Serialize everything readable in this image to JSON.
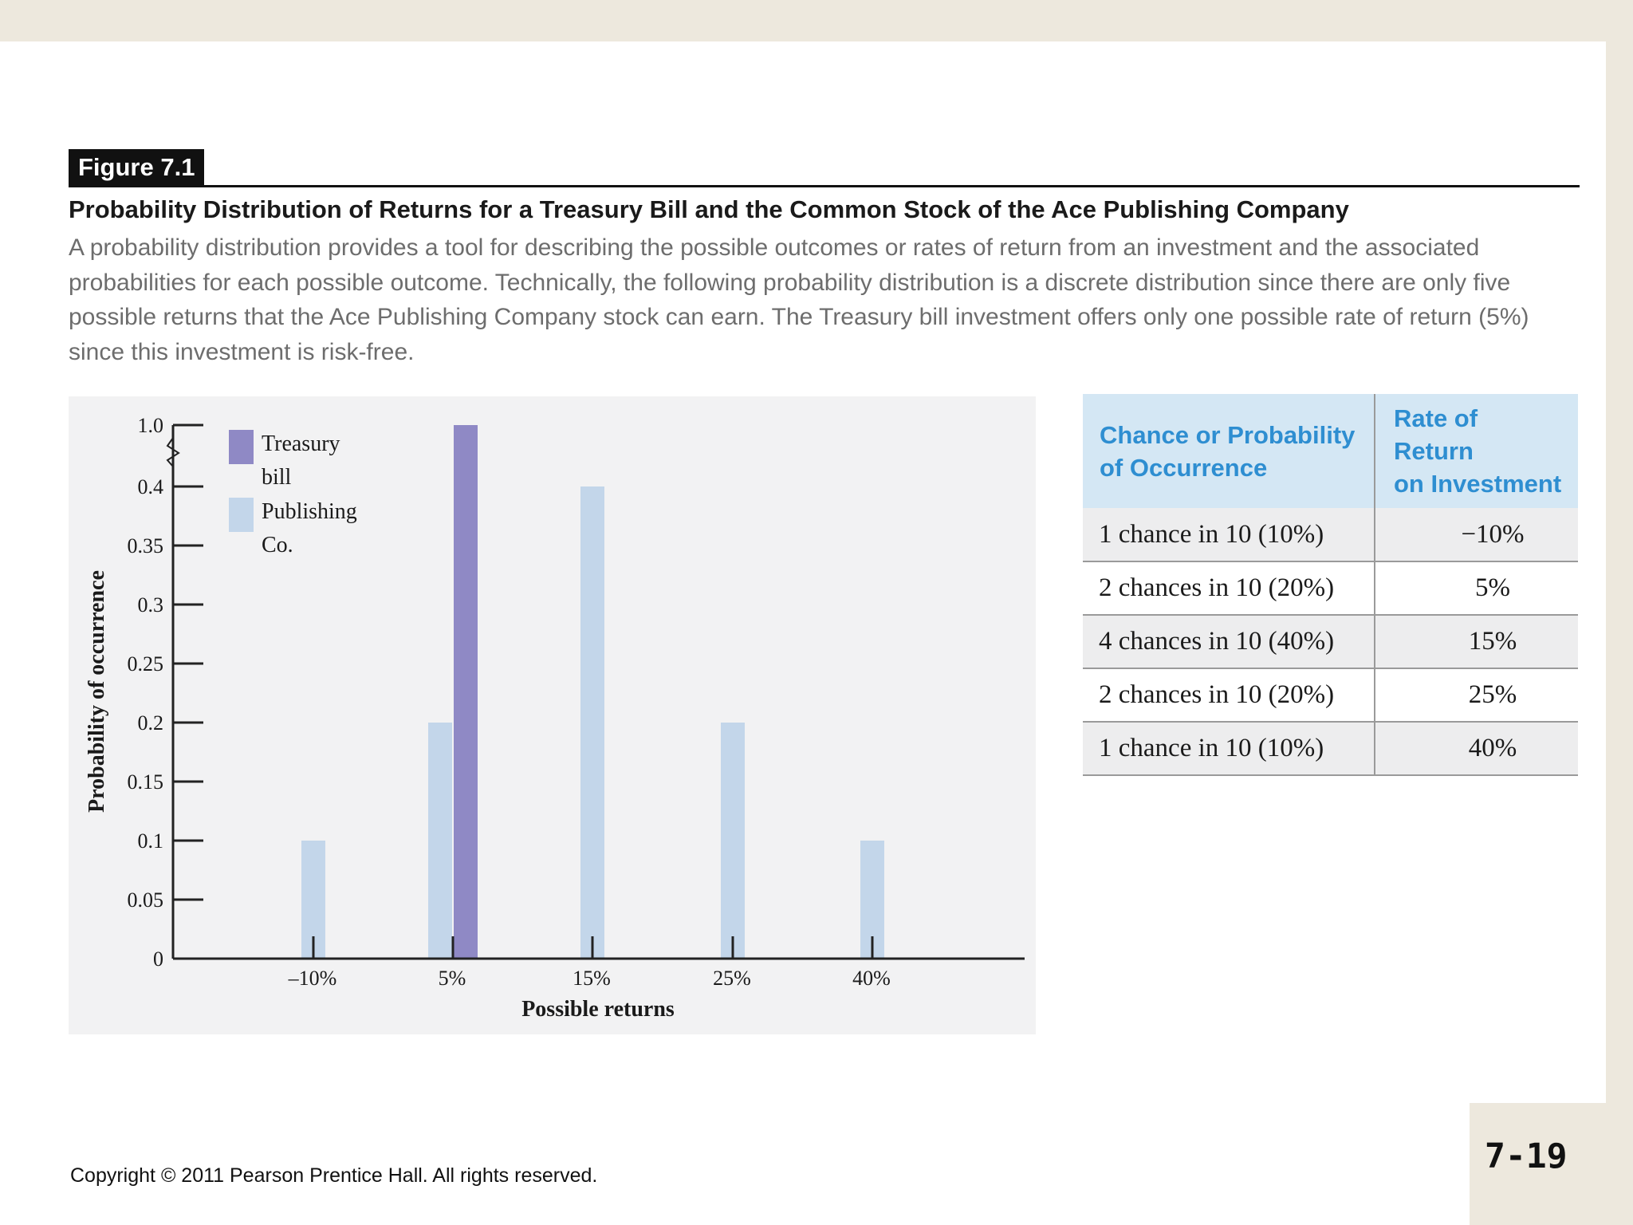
{
  "figure": {
    "label": "Figure 7.1",
    "title": "Probability Distribution of Returns for a Treasury Bill and the Common Stock of the Ace Publishing Company",
    "description": "A probability distribution provides a tool for describing the possible outcomes or rates of return from an investment and the associated probabilities for each possible outcome. Technically, the following probability distribution is a discrete distribution since there are only five possible returns that the Ace Publishing Company stock can earn. The Treasury bill investment offers only one possible rate of return (5%) since this investment is risk-free."
  },
  "chart_data": {
    "type": "bar",
    "xlabel": "Possible returns",
    "ylabel": "Probability of occurrence",
    "categories": [
      "–10%",
      "5%",
      "15%",
      "25%",
      "40%"
    ],
    "yticks": [
      "0",
      "0.05",
      "0.1",
      "0.15",
      "0.2",
      "0.25",
      "0.3",
      "0.35",
      "0.4",
      "1.0"
    ],
    "axis_break": "between 0.4 and 1.0",
    "series": [
      {
        "name": "Publishing Co.",
        "legend_lines": [
          "Publishing",
          "Co."
        ],
        "color": "#c3d6ea",
        "values": [
          0.1,
          0.2,
          0.4,
          0.2,
          0.1
        ]
      },
      {
        "name": "Treasury bill",
        "legend_lines": [
          "Treasury",
          "bill"
        ],
        "color": "#8f89c5",
        "values": [
          null,
          1.0,
          null,
          null,
          null
        ]
      }
    ]
  },
  "table": {
    "headers": [
      "Chance or Probability of Occurrence",
      "Rate of Return on Investment"
    ],
    "header_lines": [
      [
        "Chance or Probability",
        "of Occurrence"
      ],
      [
        "Rate of Return",
        "on Investment"
      ]
    ],
    "rows": [
      [
        "1 chance in 10 (10%)",
        "−10%"
      ],
      [
        "2 chances in 10 (20%)",
        "5%"
      ],
      [
        "4 chances in 10 (40%)",
        "15%"
      ],
      [
        "2 chances in 10 (20%)",
        "25%"
      ],
      [
        "1 chance in 10 (10%)",
        "40%"
      ]
    ]
  },
  "footer": {
    "copyright": "Copyright © 2011 Pearson Prentice Hall. All rights reserved.",
    "page_number": "7-19"
  }
}
